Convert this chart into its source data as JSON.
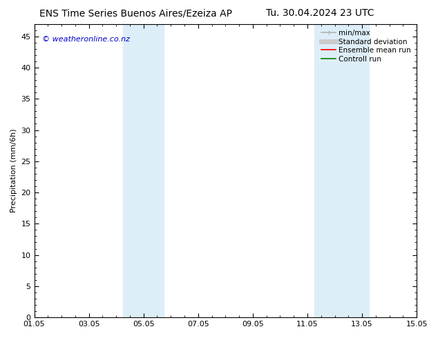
{
  "title_left": "ENS Time Series Buenos Aires/Ezeiza AP",
  "title_right": "Tu. 30.04.2024 23 UTC",
  "ylabel": "Precipitation (mm/6h)",
  "xlabel": "",
  "ylim": [
    0,
    47
  ],
  "yticks": [
    0,
    5,
    10,
    15,
    20,
    25,
    30,
    35,
    40,
    45
  ],
  "xtick_labels": [
    "01.05",
    "03.05",
    "05.05",
    "07.05",
    "09.05",
    "11.05",
    "13.05",
    "15.05"
  ],
  "xtick_positions": [
    0,
    2,
    4,
    6,
    8,
    10,
    12,
    14
  ],
  "xlim": [
    0,
    14
  ],
  "shaded_regions": [
    {
      "start": 3.25,
      "end": 4.75
    },
    {
      "start": 10.25,
      "end": 12.25
    }
  ],
  "shaded_color": "#ddeef8",
  "watermark_text": "© weatheronline.co.nz",
  "watermark_color": "#0000cc",
  "legend_entries": [
    {
      "label": "min/max",
      "color": "#b0b0b0",
      "lw": 1.2,
      "ls": "-"
    },
    {
      "label": "Standard deviation",
      "color": "#cccccc",
      "lw": 5,
      "ls": "-"
    },
    {
      "label": "Ensemble mean run",
      "color": "#ff0000",
      "lw": 1.2,
      "ls": "-"
    },
    {
      "label": "Controll run",
      "color": "#008000",
      "lw": 1.2,
      "ls": "-"
    }
  ],
  "bg_color": "#ffffff",
  "title_fontsize": 10,
  "axis_fontsize": 8,
  "tick_fontsize": 8,
  "legend_fontsize": 7.5,
  "watermark_fontsize": 8
}
